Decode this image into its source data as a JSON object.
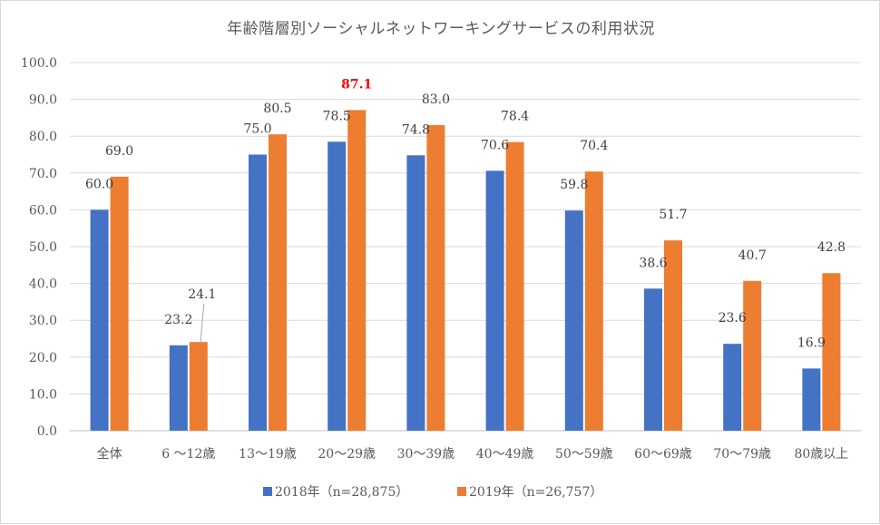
{
  "chart_data": {
    "type": "bar",
    "title": "年齢階層別ソーシャルネットワーキングサービスの利用状況",
    "categories": [
      "全体",
      "6 ～12歳",
      "13～19歳",
      "20～29歳",
      "30～39歳",
      "40～49歳",
      "50～59歳",
      "60～69歳",
      "70～79歳",
      "80歳以上"
    ],
    "series": [
      {
        "name": "2018年（n=28,875）",
        "color": "#4472c4",
        "values": [
          60.0,
          23.2,
          75.0,
          78.5,
          74.8,
          70.6,
          59.8,
          38.6,
          23.6,
          16.9
        ],
        "labels": [
          "60.0",
          "23.2",
          "75.0",
          "78.5",
          "74.8",
          "70.6",
          "59.8",
          "38.6",
          "23.6",
          "16.9"
        ]
      },
      {
        "name": "2019年（n=26,757）",
        "color": "#ed7d31",
        "values": [
          69.0,
          24.1,
          80.5,
          87.1,
          83.0,
          78.4,
          70.4,
          51.7,
          40.7,
          42.8
        ],
        "labels": [
          "69.0",
          "24.1",
          "80.5",
          "87.1",
          "83.0",
          "78.4",
          "70.4",
          "51.7",
          "40.7",
          "42.8"
        ]
      }
    ],
    "highlight": {
      "series_index": 1,
      "category_index": 3,
      "color": "#ff0000"
    },
    "ylim": [
      0,
      100
    ],
    "yticks": [
      "0.0",
      "10.0",
      "20.0",
      "30.0",
      "40.0",
      "50.0",
      "60.0",
      "70.0",
      "80.0",
      "90.0",
      "100.0"
    ],
    "grid": true,
    "legend_position": "bottom",
    "xlabel": "",
    "ylabel": ""
  }
}
